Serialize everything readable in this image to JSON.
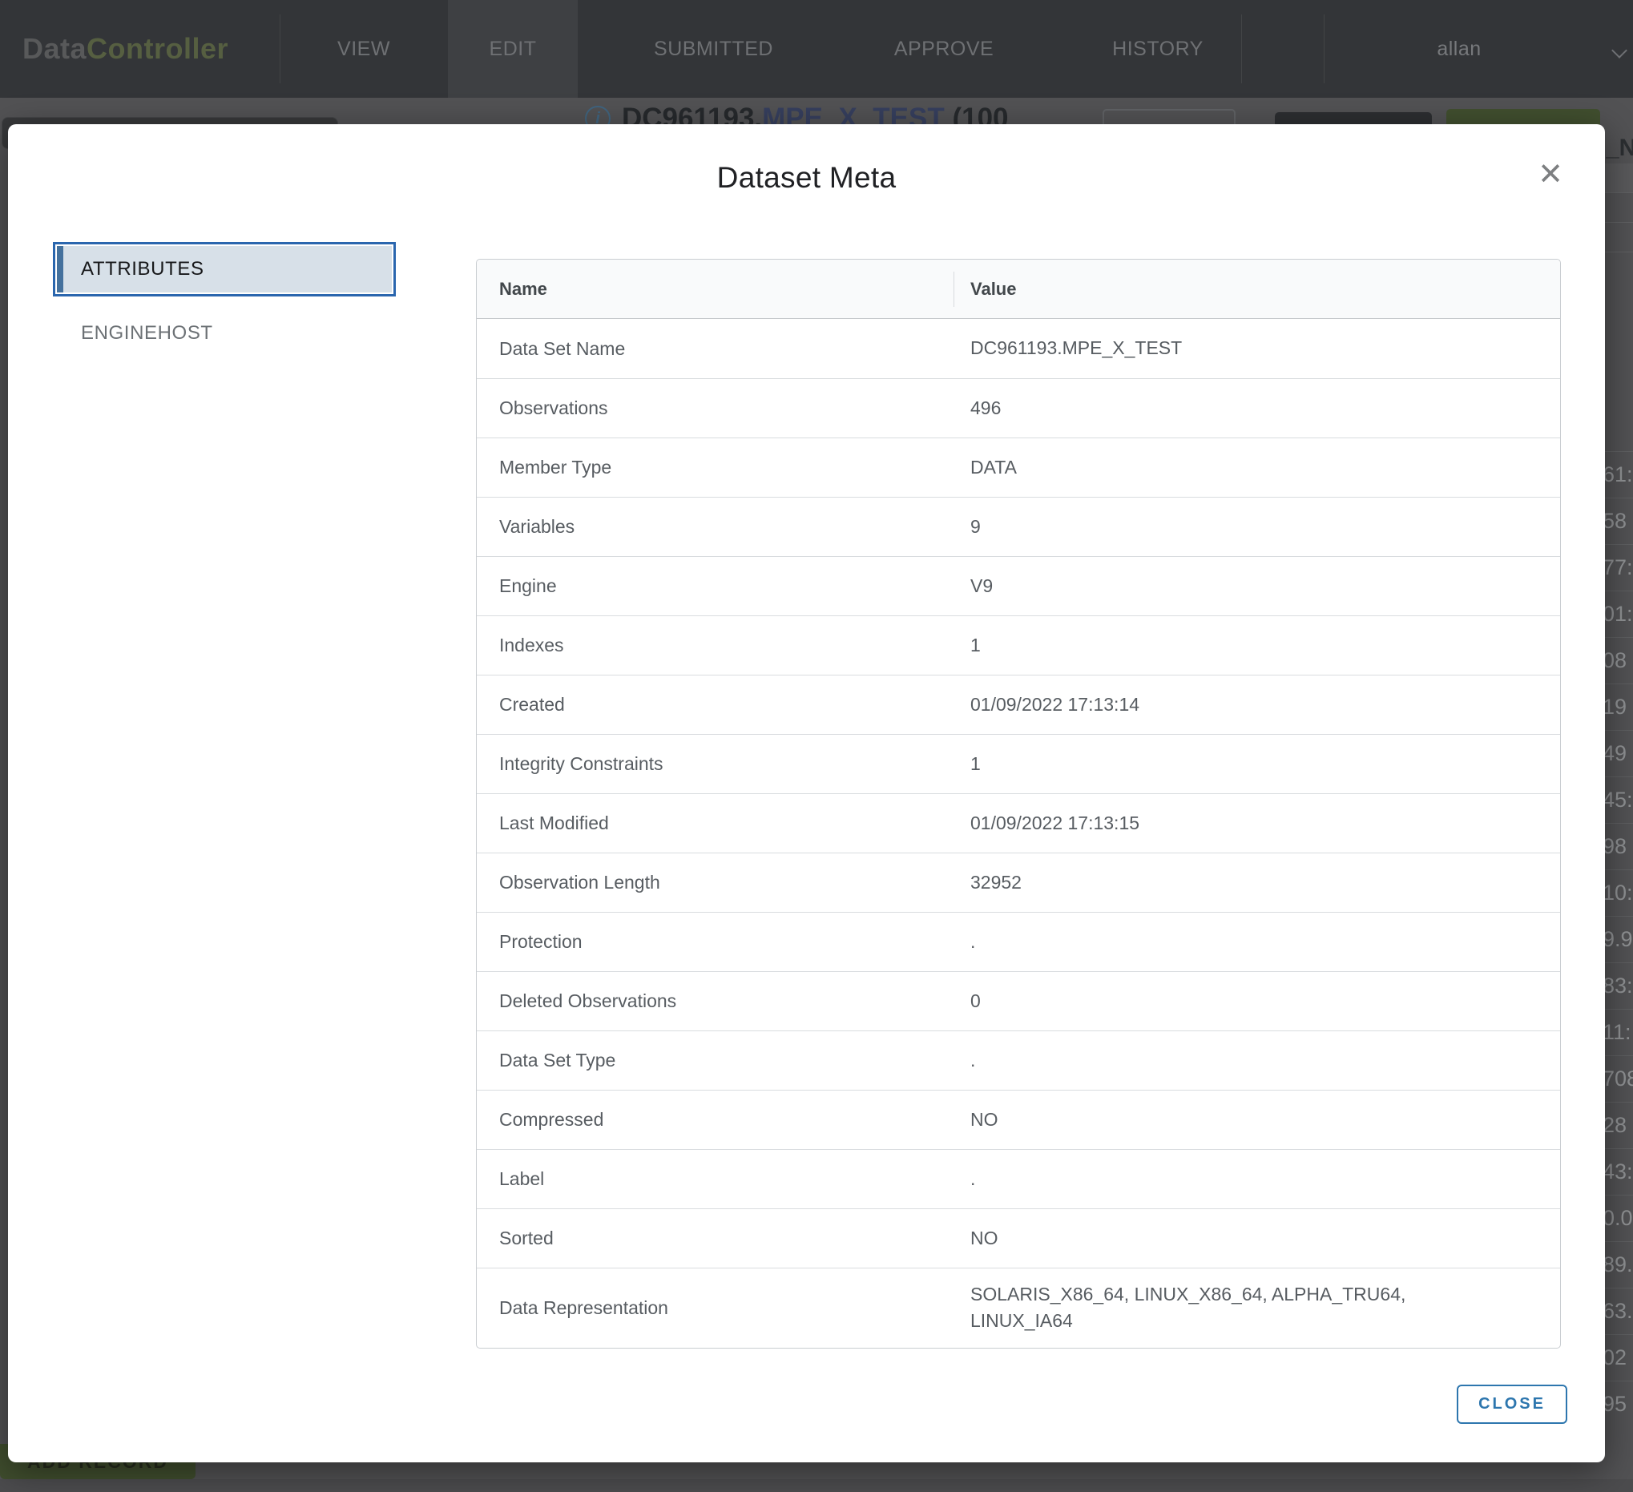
{
  "navbar": {
    "logo_part1": "Data",
    "logo_part2": "Controller",
    "items": [
      {
        "label": "VIEW",
        "active": false
      },
      {
        "label": "EDIT",
        "active": true
      },
      {
        "label": "SUBMITTED",
        "active": false
      },
      {
        "label": "APPROVE",
        "active": false
      },
      {
        "label": "HISTORY",
        "active": false
      }
    ],
    "user": "allan"
  },
  "background": {
    "heading_prefix": "DC961193.",
    "heading_dataset": "MPE_X_TEST",
    "heading_suffix": "(100",
    "column_header_fragment": "_N",
    "add_record_label": "ADD RECORD",
    "right_edge_fragments": [
      "61:",
      "58",
      "77:",
      "01:",
      "08",
      "19",
      "49",
      "45:",
      "98",
      "10:",
      "9.9",
      "83:",
      "11:",
      "708",
      "28",
      "43:",
      "0.0",
      "89.",
      "63.",
      "02",
      "95"
    ]
  },
  "modal": {
    "title": "Dataset Meta",
    "tabs": [
      {
        "label": "ATTRIBUTES",
        "active": true
      },
      {
        "label": "ENGINEHOST",
        "active": false
      }
    ],
    "table": {
      "columns": [
        "Name",
        "Value"
      ],
      "rows": [
        {
          "name": "Data Set Name",
          "value": "DC961193.MPE_X_TEST"
        },
        {
          "name": "Observations",
          "value": "496"
        },
        {
          "name": "Member Type",
          "value": "DATA"
        },
        {
          "name": "Variables",
          "value": "9"
        },
        {
          "name": "Engine",
          "value": "V9"
        },
        {
          "name": "Indexes",
          "value": "1"
        },
        {
          "name": "Created",
          "value": "01/09/2022 17:13:14"
        },
        {
          "name": "Integrity Constraints",
          "value": "1"
        },
        {
          "name": "Last Modified",
          "value": "01/09/2022 17:13:15"
        },
        {
          "name": "Observation Length",
          "value": "32952"
        },
        {
          "name": "Protection",
          "value": "."
        },
        {
          "name": "Deleted Observations",
          "value": "0"
        },
        {
          "name": "Data Set Type",
          "value": "."
        },
        {
          "name": "Compressed",
          "value": "NO"
        },
        {
          "name": "Label",
          "value": "."
        },
        {
          "name": "Sorted",
          "value": "NO"
        },
        {
          "name": "Data Representation",
          "value": "SOLARIS_X86_64, LINUX_X86_64, ALPHA_TRU64, LINUX_IA64"
        }
      ]
    },
    "close_button": "CLOSE"
  },
  "icons": {
    "close": "✕",
    "info": "i"
  },
  "colors": {
    "accent_blue": "#2d76ae",
    "tab_selected_bg": "#d7e0e8",
    "tab_selected_bar": "#44719d",
    "logo_olive": "#565f41",
    "navbar_bg": "#333538",
    "overlay_page_bg": "#525254",
    "add_record_green": "#404e2e"
  }
}
